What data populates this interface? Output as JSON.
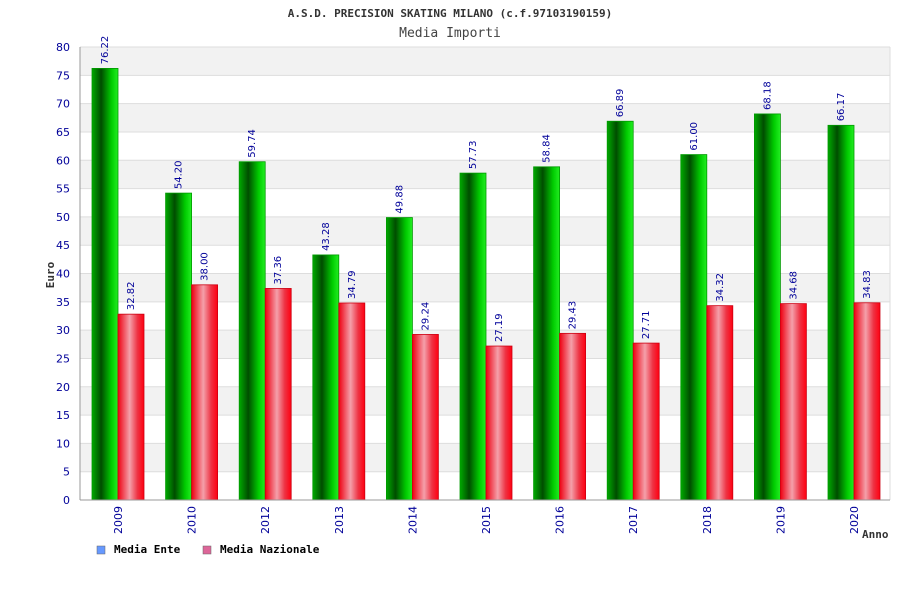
{
  "chart_data": {
    "type": "bar",
    "title": "A.S.D. PRECISION SKATING MILANO (c.f.97103190159)",
    "subtitle": "Media Importi",
    "xlabel": "Anno",
    "ylabel": "Euro",
    "ylim": [
      0,
      80
    ],
    "ytick_step": 5,
    "categories": [
      "2009",
      "2010",
      "2012",
      "2013",
      "2014",
      "2015",
      "2016",
      "2017",
      "2018",
      "2019",
      "2020"
    ],
    "series": [
      {
        "name": "Media Ente",
        "color": "#00aa00",
        "legend_color": "#6699ff",
        "values": [
          76.22,
          54.2,
          59.74,
          43.28,
          49.88,
          57.73,
          58.84,
          66.89,
          61.0,
          68.18,
          66.17
        ]
      },
      {
        "name": "Media Nazionale",
        "color": "#ee1122",
        "legend_color": "#dd6699",
        "values": [
          32.82,
          38.0,
          37.36,
          34.79,
          29.24,
          27.19,
          29.43,
          27.71,
          34.32,
          34.68,
          34.83
        ]
      }
    ],
    "grid": true,
    "legend": "bottom-left"
  }
}
